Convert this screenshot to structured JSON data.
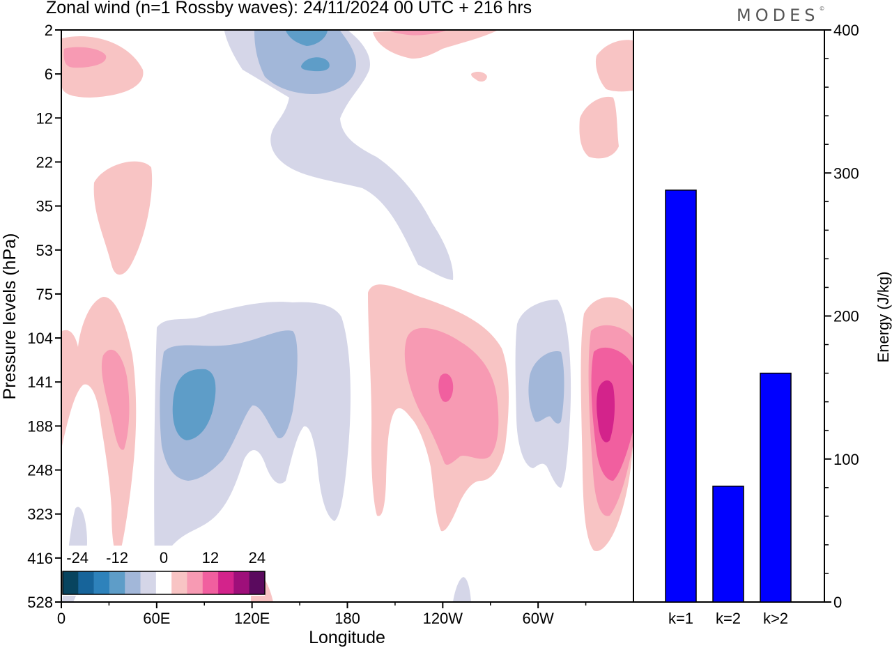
{
  "title": "Zonal wind (n=1 Rossby waves):  24/11/2024  00 UTC  + 216 hrs",
  "logo": "MODES",
  "logo_mark": "©",
  "colors": {
    "neg24": "#08445f",
    "neg20": "#17649a",
    "neg16": "#2e82bb",
    "neg12": "#5e9dc8",
    "neg8": "#a2b7d9",
    "neg4": "#d5d6e8",
    "zero": "#ffffff",
    "pos4": "#f8c4c4",
    "pos8": "#f79ab3",
    "pos12": "#f15f9f",
    "pos16": "#d3238b",
    "pos20": "#9e0f7a",
    "pos24": "#5a0a5e",
    "bar": "#0000ff"
  },
  "chart_data": [
    {
      "type": "heatmap",
      "title": "Zonal wind (n=1 Rossby waves):  24/11/2024  00 UTC  + 216 hrs",
      "xlabel": "Longitude",
      "ylabel": "Pressure levels (hPa)",
      "x_ticks": [
        "0",
        "60E",
        "120E",
        "180",
        "120W",
        "60W"
      ],
      "y_ticks": [
        "2",
        "6",
        "12",
        "22",
        "35",
        "53",
        "75",
        "104",
        "141",
        "188",
        "248",
        "323",
        "416",
        "528"
      ],
      "colorbar": {
        "labels": [
          "-24",
          "-12",
          "0",
          "12",
          "24"
        ],
        "levels": [
          -24,
          -20,
          -16,
          -12,
          -8,
          -4,
          0,
          4,
          8,
          12,
          16,
          20,
          24
        ]
      }
    },
    {
      "type": "bar",
      "categories": [
        "k=1",
        "k=2",
        "k>2"
      ],
      "values": [
        288,
        81,
        160
      ],
      "ylabel": "Energy (J/kg)",
      "ylim": [
        0,
        400
      ],
      "y_ticks": [
        "0",
        "100",
        "200",
        "300",
        "400"
      ]
    }
  ]
}
